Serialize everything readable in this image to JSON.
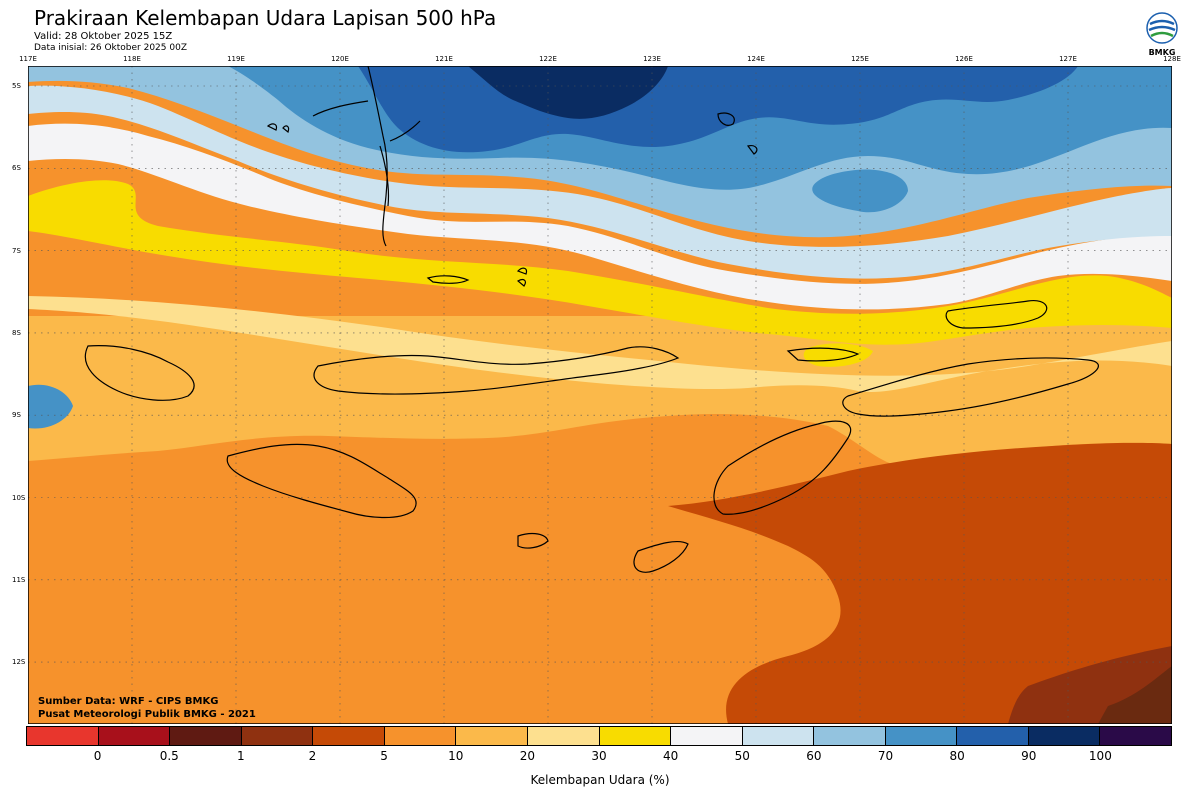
{
  "header": {
    "title": "Prakiraan Kelembapan Udara Lapisan 500 hPa",
    "valid": "Valid: 28 Oktober 2025 15Z",
    "initial": "Data inisial: 26 Oktober 2025 00Z"
  },
  "logo": {
    "text": "BMKG"
  },
  "axes": {
    "lon_labels": [
      "117E",
      "118E",
      "119E",
      "120E",
      "121E",
      "122E",
      "123E",
      "124E",
      "125E",
      "126E",
      "127E",
      "128E"
    ],
    "lat_labels": [
      "5S",
      "6S",
      "7S",
      "8S",
      "9S",
      "10S",
      "11S",
      "12S"
    ]
  },
  "footer": {
    "source": "Sumber Data: WRF - CIPS BMKG",
    "center": "Pusat Meteorologi Publik BMKG - 2021"
  },
  "legend": {
    "colors": [
      "#e8362d",
      "#a8101b",
      "#5f1a12",
      "#8f3110",
      "#c54a06",
      "#f6922c",
      "#fbb94a",
      "#fde08f",
      "#f8dc00",
      "#f4f4f6",
      "#cde3ef",
      "#93c3df",
      "#4592c6",
      "#2360ab",
      "#0a2c62",
      "#2a0a48"
    ],
    "ticks": [
      "0",
      "0.5",
      "1",
      "2",
      "5",
      "10",
      "20",
      "30",
      "40",
      "50",
      "60",
      "70",
      "80",
      "90",
      "100"
    ],
    "label": "Kelembapan Udara (%)"
  },
  "palette": {
    "blue_dark": "#0a2c62",
    "blue": "#2360ab",
    "blue_mid": "#4592c6",
    "blue_light": "#93c3df",
    "blue_pale": "#cde3ef",
    "white": "#f4f4f6",
    "yellow": "#f8dc00",
    "cream": "#fde08f",
    "light_orange": "#fbb94a",
    "orange": "#f6922c",
    "dark_orange": "#c54a06",
    "brown": "#8f3110"
  }
}
